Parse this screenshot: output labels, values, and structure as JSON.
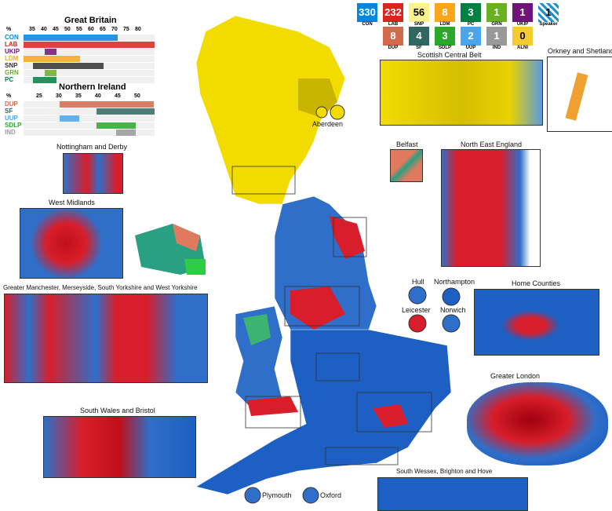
{
  "seats": [
    {
      "party": "CON",
      "seats": "330",
      "color": "#0087dc",
      "text": "#fff"
    },
    {
      "party": "LAB",
      "seats": "232",
      "color": "#dc241f",
      "text": "#fff"
    },
    {
      "party": "SNP",
      "seats": "56",
      "color": "#fdf38e",
      "text": "#000"
    },
    {
      "party": "LDM",
      "seats": "8",
      "color": "#faa61a",
      "text": "#fff"
    },
    {
      "party": "PC",
      "seats": "3",
      "color": "#008142",
      "text": "#fff"
    },
    {
      "party": "GRN",
      "seats": "1",
      "color": "#6ab023",
      "text": "#fff"
    },
    {
      "party": "UKIP",
      "seats": "1",
      "color": "#70147a",
      "text": "#fff"
    },
    {
      "party": "Speaker",
      "seats": "1",
      "color": "#7ec8e8",
      "text": "#000"
    },
    {
      "party": "DUP",
      "seats": "8",
      "color": "#d46a4c",
      "text": "#fff"
    },
    {
      "party": "SF",
      "seats": "4",
      "color": "#326760",
      "text": "#fff"
    },
    {
      "party": "SDLP",
      "seats": "3",
      "color": "#2aa82c",
      "text": "#fff"
    },
    {
      "party": "UUP",
      "seats": "2",
      "color": "#48a5ee",
      "text": "#fff"
    },
    {
      "party": "IND",
      "seats": "1",
      "color": "#999999",
      "text": "#fff"
    },
    {
      "party": "ALNI",
      "seats": "0",
      "color": "#f6cb2f",
      "text": "#000"
    }
  ],
  "legend_gb": {
    "title": "Great Britain",
    "pct": "%",
    "ticks": [
      "35",
      "40",
      "45",
      "50",
      "55",
      "60",
      "65",
      "70",
      "75",
      "80"
    ],
    "parties": [
      {
        "name": "CON",
        "color": "#0087dc"
      },
      {
        "name": "LAB",
        "color": "#dc241f"
      },
      {
        "name": "UKIP",
        "color": "#70147a"
      },
      {
        "name": "LDM",
        "color": "#faa61a"
      },
      {
        "name": "SNP",
        "color": "#333333"
      },
      {
        "name": "GRN",
        "color": "#6ab023"
      },
      {
        "name": "PC",
        "color": "#008142"
      }
    ]
  },
  "legend_ni": {
    "title": "Northern Ireland",
    "pct": "%",
    "ticks": [
      "25",
      "30",
      "35",
      "40",
      "45",
      "50"
    ],
    "parties": [
      {
        "name": "DUP",
        "color": "#d46a4c"
      },
      {
        "name": "SF",
        "color": "#326760"
      },
      {
        "name": "UUP",
        "color": "#48a5ee"
      },
      {
        "name": "SDLP",
        "color": "#2aa82c"
      },
      {
        "name": "IND",
        "color": "#999999"
      }
    ]
  },
  "insets": {
    "scottish_central_belt": "Scottish Central Belt",
    "orkney_shetland": "Orkney and Shetland",
    "aberdeen": "Aberdeen",
    "nottingham_derby": "Nottingham and Derby",
    "west_midlands": "West Midlands",
    "belfast": "Belfast",
    "north_east": "North East England",
    "manchester": "Greater Manchester, Merseyside, South Yorkshire and West Yorkshire",
    "hull": "Hull",
    "northampton": "Northampton",
    "leicester": "Leicester",
    "norwich": "Norwich",
    "home_counties": "Home Counties",
    "greater_london": "Greater London",
    "south_wales": "South Wales and Bristol",
    "south_wessex": "South Wessex, Brighton and Hove",
    "plymouth": "Plymouth",
    "oxford": "Oxford"
  }
}
